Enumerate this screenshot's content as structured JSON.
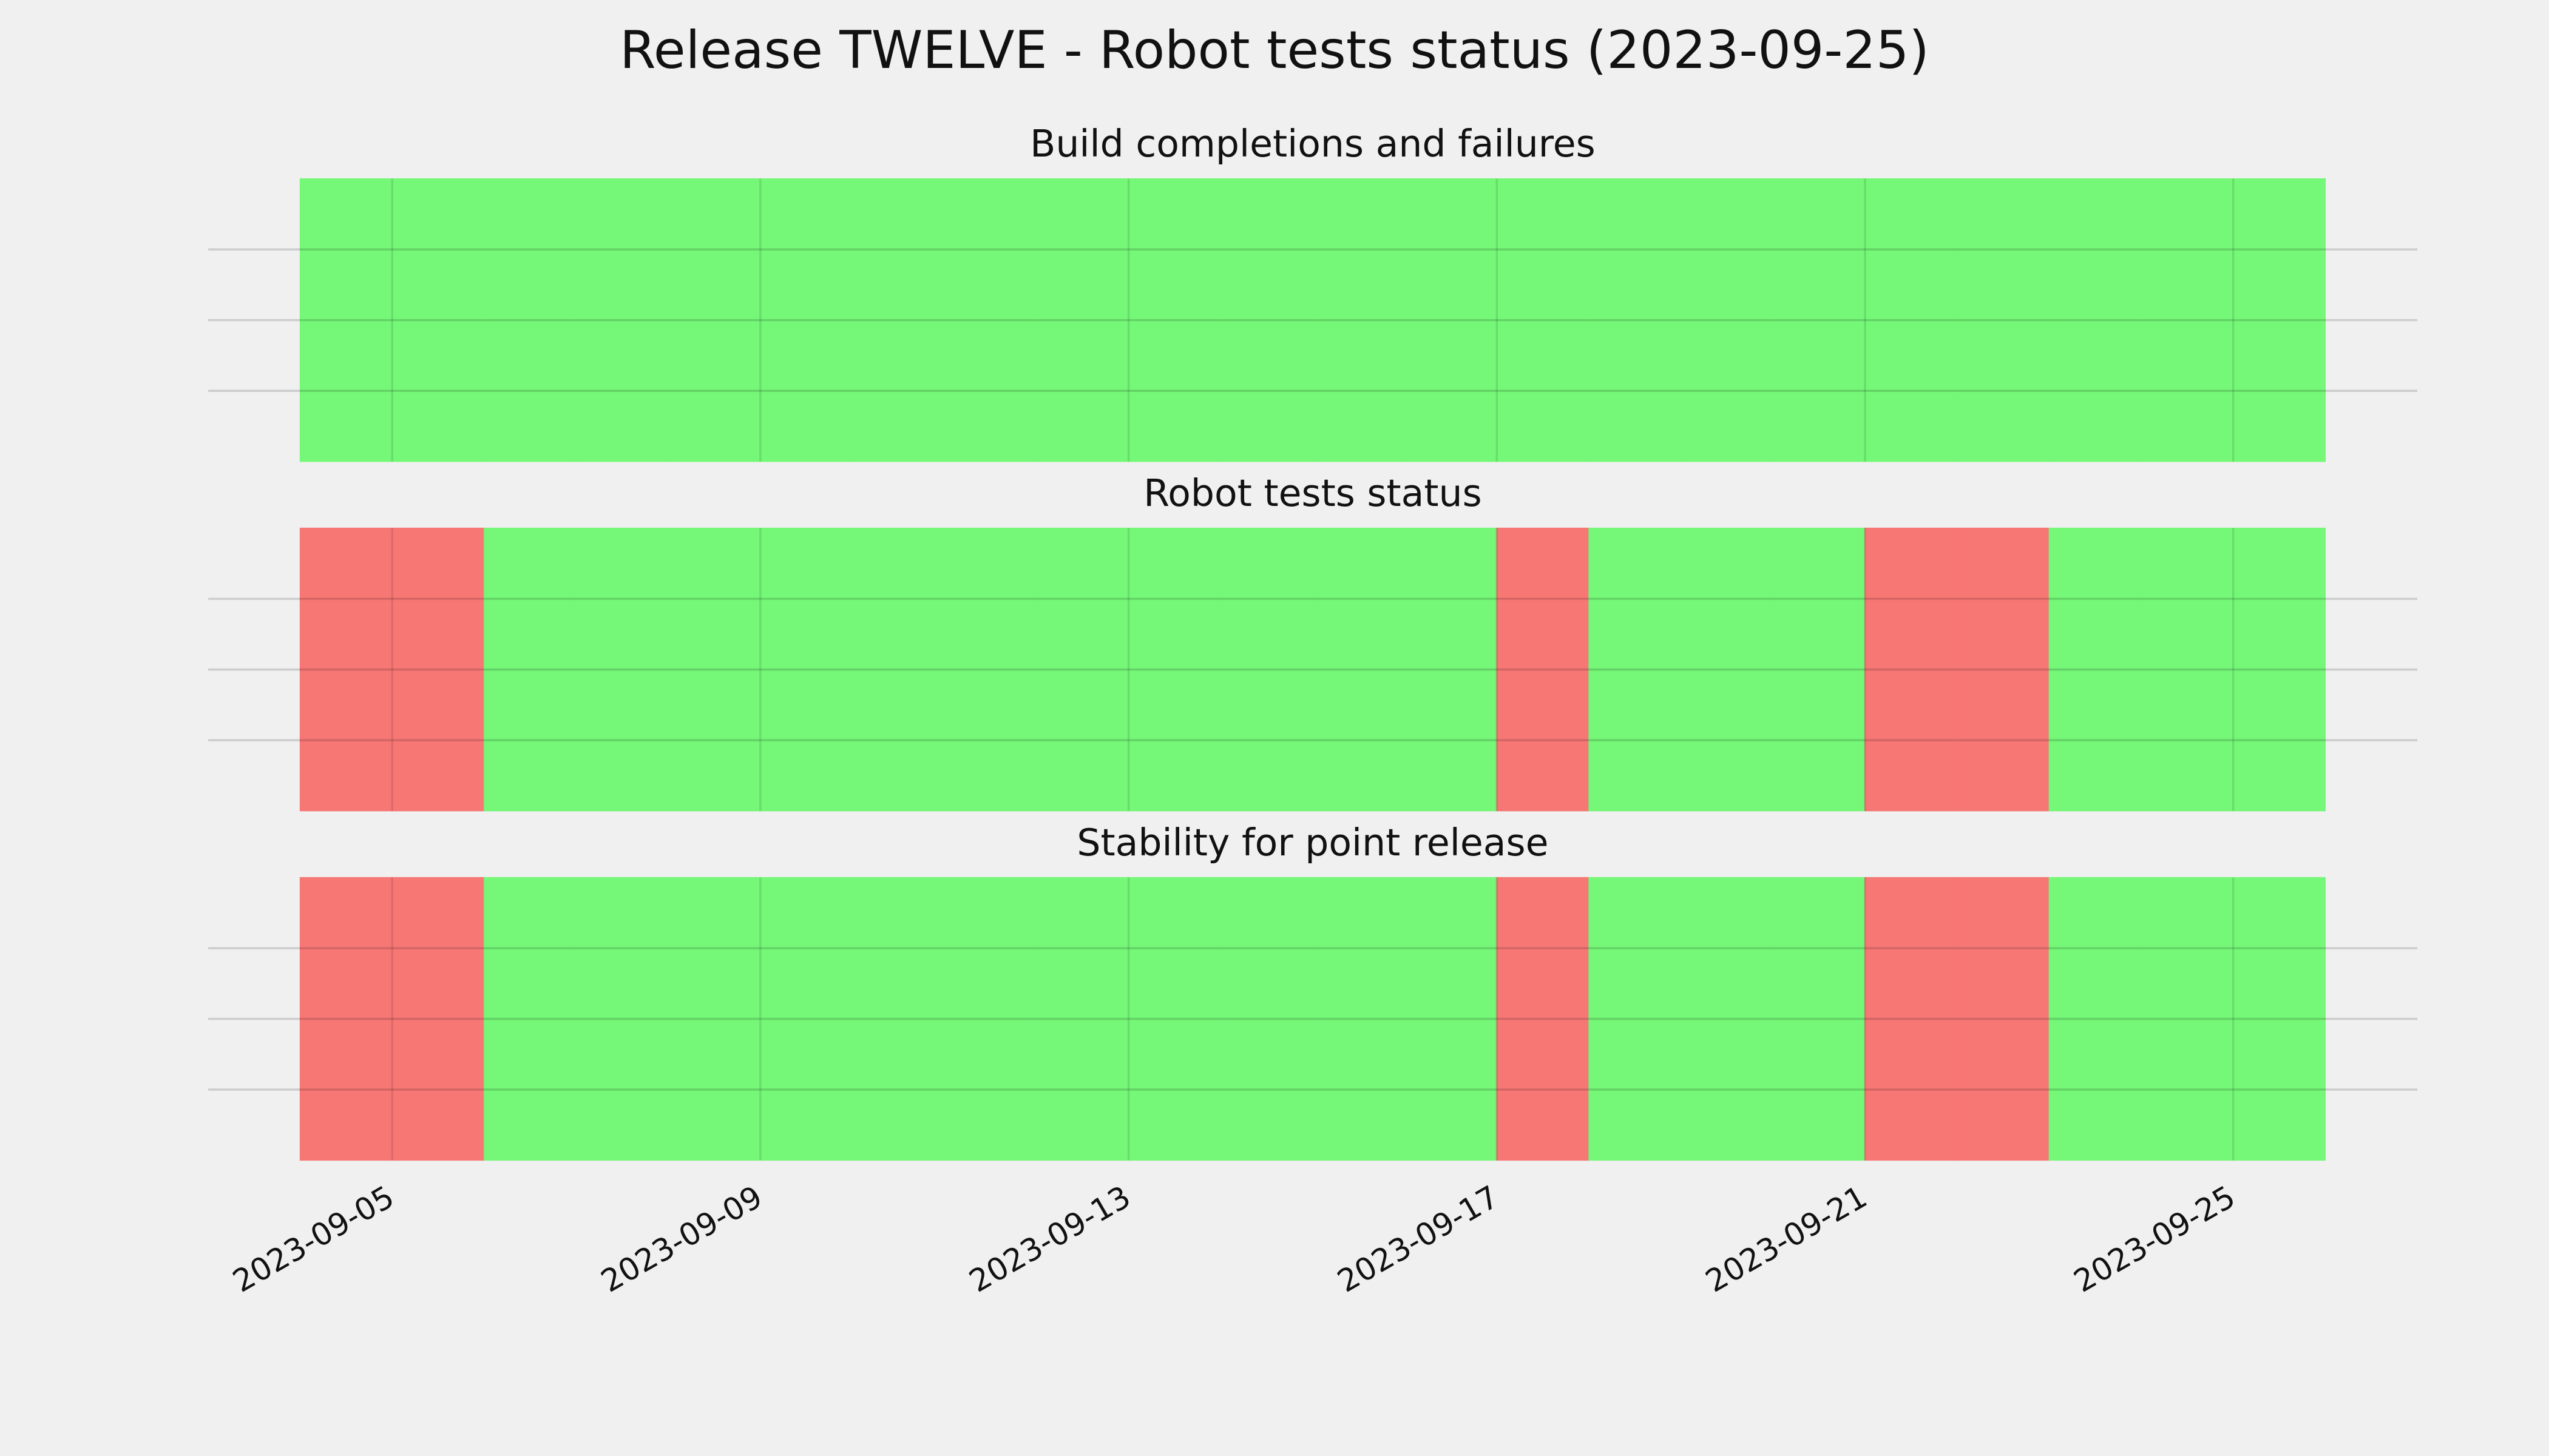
{
  "title": "Release TWELVE - Robot tests status (2023-09-25)",
  "chart_data": [
    {
      "type": "timeline",
      "title": "Build completions and failures",
      "x": [
        "2023-09-04",
        "2023-09-05",
        "2023-09-06",
        "2023-09-07",
        "2023-09-08",
        "2023-09-09",
        "2023-09-10",
        "2023-09-11",
        "2023-09-12",
        "2023-09-13",
        "2023-09-14",
        "2023-09-15",
        "2023-09-16",
        "2023-09-17",
        "2023-09-18",
        "2023-09-19",
        "2023-09-20",
        "2023-09-21",
        "2023-09-22",
        "2023-09-23",
        "2023-09-24",
        "2023-09-25"
      ],
      "values": [
        1,
        1,
        1,
        1,
        1,
        1,
        1,
        1,
        1,
        1,
        1,
        1,
        1,
        1,
        1,
        1,
        1,
        1,
        1,
        1,
        1,
        1
      ],
      "colors": [
        "#f77775",
        "#75f778"
      ],
      "xlim": [
        "2023-09-03",
        "2023-09-27"
      ],
      "xticks": [
        "2023-09-05",
        "2023-09-09",
        "2023-09-13",
        "2023-09-17",
        "2023-09-21",
        "2023-09-25"
      ],
      "ylim": [
        0,
        1
      ],
      "yticks": [
        0.25,
        0.5,
        0.75
      ],
      "grid": true
    },
    {
      "type": "timeline",
      "title": "Robot tests status",
      "x": [
        "2023-09-04",
        "2023-09-05",
        "2023-09-06",
        "2023-09-07",
        "2023-09-08",
        "2023-09-09",
        "2023-09-10",
        "2023-09-11",
        "2023-09-12",
        "2023-09-13",
        "2023-09-14",
        "2023-09-15",
        "2023-09-16",
        "2023-09-17",
        "2023-09-18",
        "2023-09-19",
        "2023-09-20",
        "2023-09-21",
        "2023-09-22",
        "2023-09-23",
        "2023-09-24",
        "2023-09-25"
      ],
      "values": [
        0,
        0,
        1,
        1,
        1,
        1,
        1,
        1,
        1,
        1,
        1,
        1,
        1,
        0,
        1,
        1,
        1,
        0,
        0,
        1,
        1,
        1
      ],
      "colors": [
        "#f77775",
        "#75f778"
      ],
      "xlim": [
        "2023-09-03",
        "2023-09-27"
      ],
      "xticks": [
        "2023-09-05",
        "2023-09-09",
        "2023-09-13",
        "2023-09-17",
        "2023-09-21",
        "2023-09-25"
      ],
      "ylim": [
        0,
        1
      ],
      "yticks": [
        0.25,
        0.5,
        0.75
      ],
      "grid": true
    },
    {
      "type": "timeline",
      "title": "Stability for point release",
      "x": [
        "2023-09-04",
        "2023-09-05",
        "2023-09-06",
        "2023-09-07",
        "2023-09-08",
        "2023-09-09",
        "2023-09-10",
        "2023-09-11",
        "2023-09-12",
        "2023-09-13",
        "2023-09-14",
        "2023-09-15",
        "2023-09-16",
        "2023-09-17",
        "2023-09-18",
        "2023-09-19",
        "2023-09-20",
        "2023-09-21",
        "2023-09-22",
        "2023-09-23",
        "2023-09-24",
        "2023-09-25"
      ],
      "values": [
        0,
        0,
        1,
        1,
        1,
        1,
        1,
        1,
        1,
        1,
        1,
        1,
        1,
        0,
        1,
        1,
        1,
        0,
        0,
        1,
        1,
        1
      ],
      "colors": [
        "#f77775",
        "#75f778"
      ],
      "xlim": [
        "2023-09-03",
        "2023-09-27"
      ],
      "xticks": [
        "2023-09-05",
        "2023-09-09",
        "2023-09-13",
        "2023-09-17",
        "2023-09-21",
        "2023-09-25"
      ],
      "ylim": [
        0,
        1
      ],
      "yticks": [
        0.25,
        0.5,
        0.75
      ],
      "grid": true,
      "show_xtick_labels": true
    }
  ]
}
